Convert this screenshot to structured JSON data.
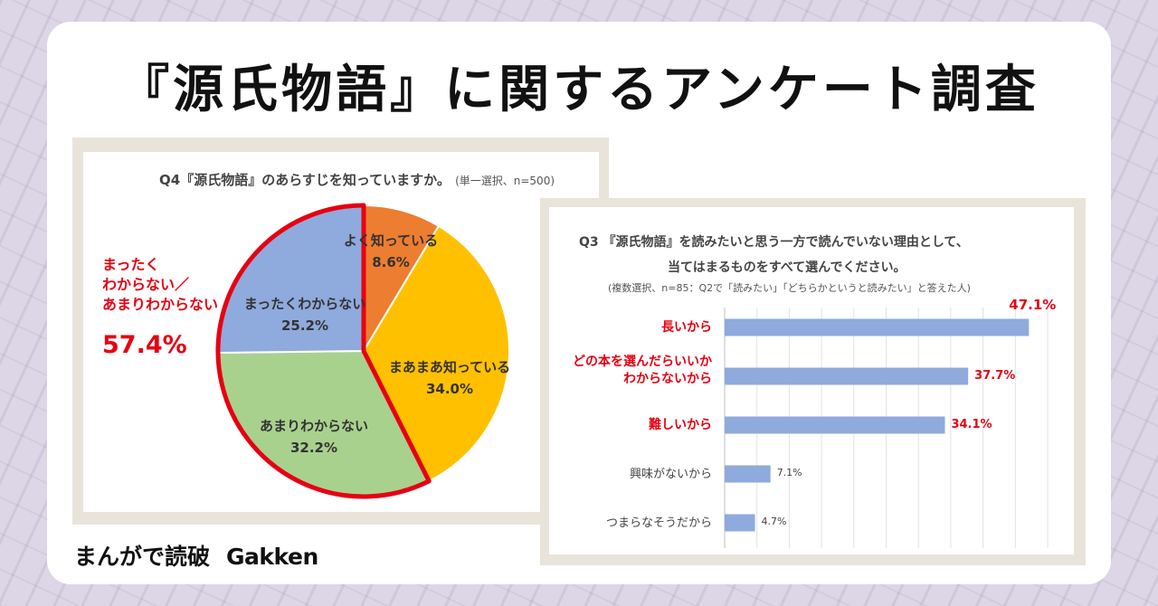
{
  "page_title": "『源氏物語』に関するアンケート調査",
  "brand": {
    "manga_logo": "まんがで読破",
    "gakken_logo": "Gakken"
  },
  "colors": {
    "highlight_red": "#e60012",
    "pie_orange": "#ed7d31",
    "pie_yellow": "#ffc000",
    "pie_green": "#a9d18e",
    "pie_blue": "#8faadc",
    "bar_blue": "#8faadc"
  },
  "chart_data": [
    {
      "type": "pie",
      "title": "Q4『源氏物語』のあらすじを知っていますか。",
      "note": "(単一選択、n=500)",
      "slices": [
        {
          "label": "よく知っている",
          "value": 8.6,
          "value_text": "8.6%",
          "color": "#ed7d31"
        },
        {
          "label": "まあまあ知っている",
          "value": 34.0,
          "value_text": "34.0%",
          "color": "#ffc000"
        },
        {
          "label": "あまりわからない",
          "value": 32.2,
          "value_text": "32.2%",
          "color": "#a9d18e"
        },
        {
          "label": "まったくわからない",
          "value": 25.2,
          "value_text": "25.2%",
          "color": "#8faadc"
        }
      ],
      "callout": {
        "lines": [
          "まったく",
          "わからない／",
          "あまりわからない"
        ],
        "value_text": "57.4%",
        "highlighted_slices": [
          "あまりわからない",
          "まったくわからない"
        ]
      }
    },
    {
      "type": "bar",
      "orientation": "horizontal",
      "title_lines": [
        "Q3 『源氏物語』を読みたいと思う一方で読んでいない理由として、",
        "当てはまるものをすべて選んでください。"
      ],
      "note": "(複数選択、n=85：Q2で「読みたい」「どちらかというと読みたい」と答えた人)",
      "xlim": [
        0,
        50
      ],
      "grid": true,
      "categories": [
        {
          "label_lines": [
            "長いから"
          ],
          "value": 47.1,
          "value_text": "47.1%",
          "highlight": true
        },
        {
          "label_lines": [
            "どの本を選んだらいいか",
            "わからないから"
          ],
          "value": 37.7,
          "value_text": "37.7%",
          "highlight": true
        },
        {
          "label_lines": [
            "難しいから"
          ],
          "value": 34.1,
          "value_text": "34.1%",
          "highlight": true
        },
        {
          "label_lines": [
            "興味がないから"
          ],
          "value": 7.1,
          "value_text": "7.1%",
          "highlight": false
        },
        {
          "label_lines": [
            "つまらなそうだから"
          ],
          "value": 4.7,
          "value_text": "4.7%",
          "highlight": false
        }
      ]
    }
  ]
}
